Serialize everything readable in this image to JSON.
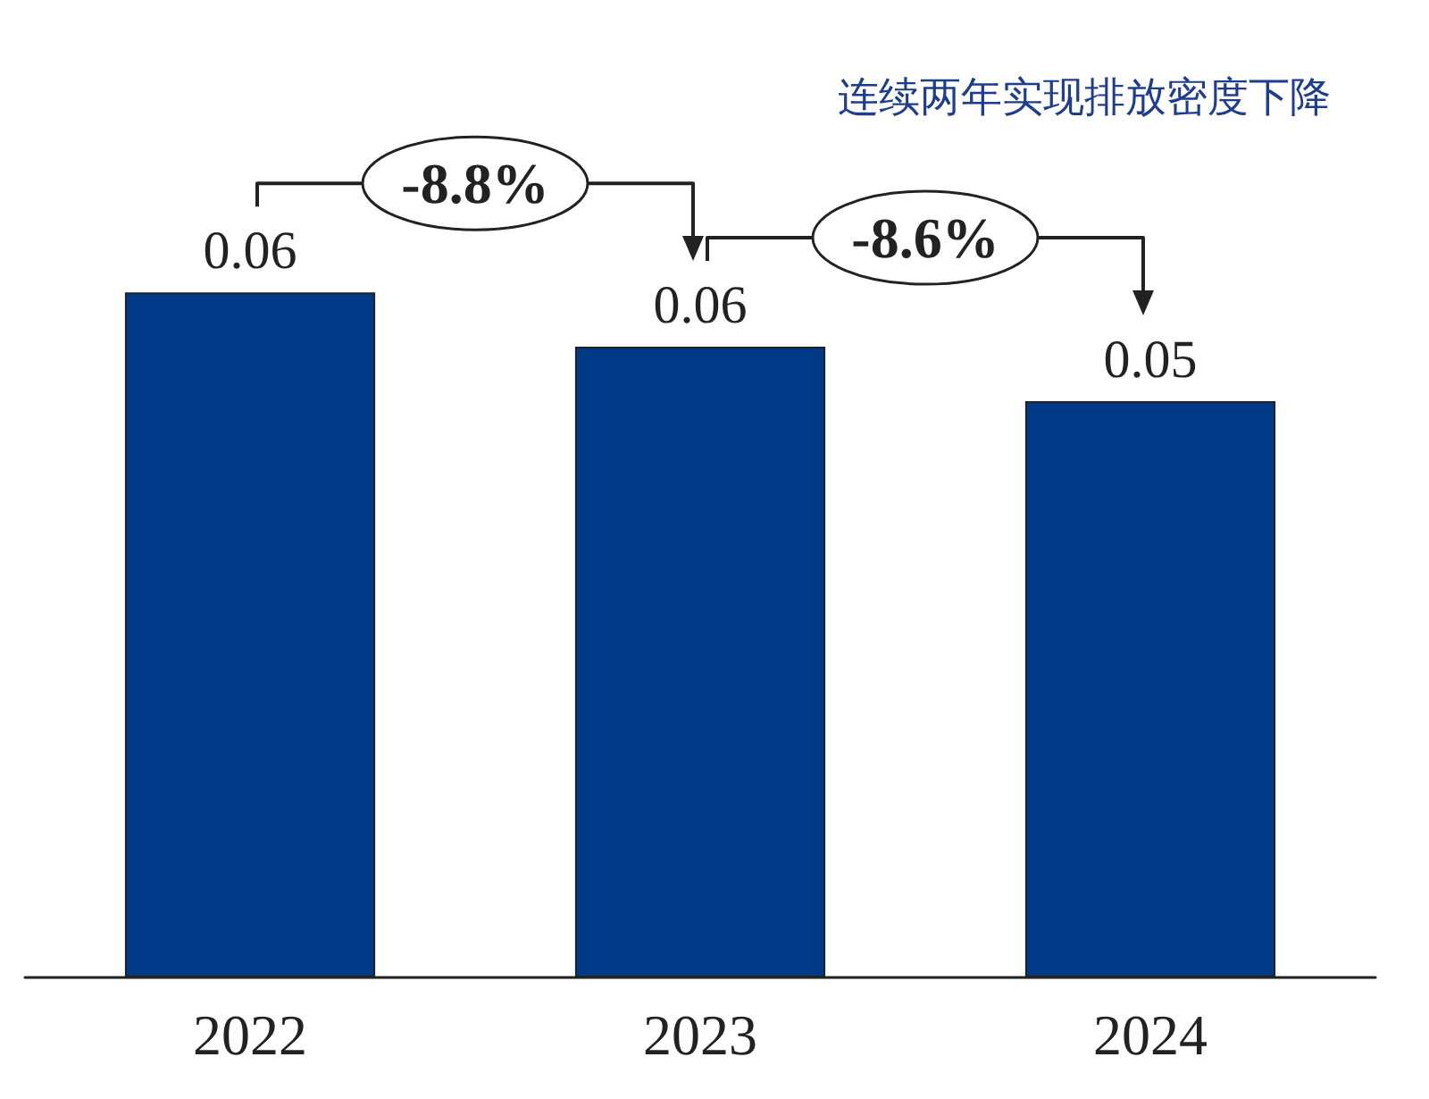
{
  "chart_data": {
    "type": "bar",
    "title": "连续两年实现排放密度下降",
    "categories": [
      "2022",
      "2023",
      "2024"
    ],
    "values": [
      0.063,
      0.058,
      0.053
    ],
    "value_labels": [
      "0.06",
      "0.06",
      "0.05"
    ],
    "color": "#003a87",
    "tick_labels": "x",
    "annotations": [
      "-8.8%",
      "-8.6%"
    ]
  }
}
